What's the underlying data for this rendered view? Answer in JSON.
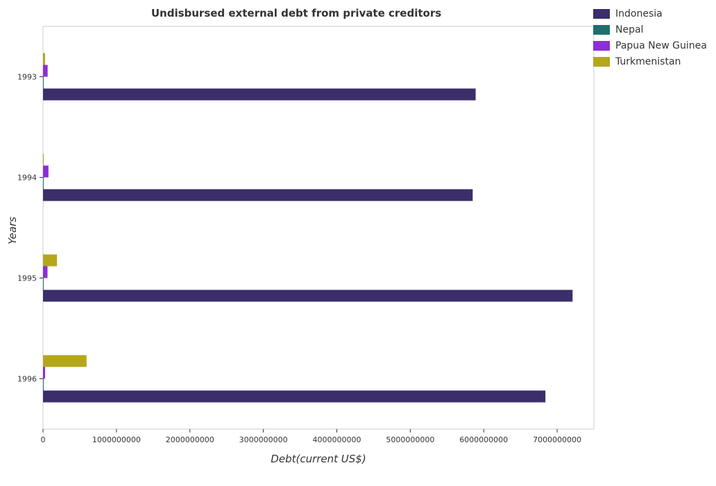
{
  "title": "Undisbursed external debt from private creditors",
  "x_axis_label": "Debt(current US$)",
  "y_axis_label": "Years",
  "legend": [
    {
      "name": "Indonesia",
      "color": "#3b2e6b"
    },
    {
      "name": "Nepal",
      "color": "#1f6f6f"
    },
    {
      "name": "Papua New Guinea",
      "color": "#8b2fd6"
    },
    {
      "name": "Turkmenistan",
      "color": "#b4a71d"
    }
  ],
  "chart_data": {
    "type": "bar",
    "orientation": "horizontal",
    "title": "Undisbursed external debt from private creditors",
    "xlabel": "Debt(current US$)",
    "ylabel": "Years",
    "categories": [
      "1993",
      "1994",
      "1995",
      "1996"
    ],
    "xlim": [
      0,
      7500000000
    ],
    "xticks": [
      0,
      1000000000,
      2000000000,
      3000000000,
      4000000000,
      5000000000,
      6000000000,
      7000000000
    ],
    "xtick_labels": [
      "0",
      "1000000000",
      "2000000000",
      "3000000000",
      "4000000000",
      "5000000000",
      "6000000000",
      "7000000000"
    ],
    "grid": false,
    "legend_position": "top-right",
    "series": [
      {
        "name": "Indonesia",
        "color": "#3b2e6b",
        "values": [
          5890000000,
          5850000000,
          7210000000,
          6840000000
        ]
      },
      {
        "name": "Nepal",
        "color": "#1f6f6f",
        "values": [
          2500000,
          2500000,
          2500000,
          2500000
        ]
      },
      {
        "name": "Papua New Guinea",
        "color": "#8b2fd6",
        "values": [
          63000000,
          74000000,
          61000000,
          28000000
        ]
      },
      {
        "name": "Turkmenistan",
        "color": "#b4a71d",
        "values": [
          28000000,
          5000000,
          190000000,
          593000000
        ]
      }
    ]
  }
}
